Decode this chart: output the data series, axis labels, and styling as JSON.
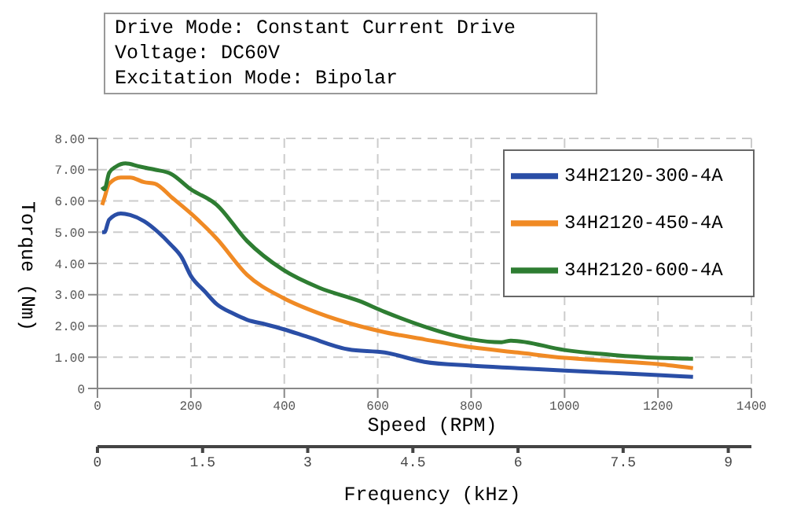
{
  "chart_data": {
    "type": "line",
    "xlabel": "Speed (RPM)",
    "ylabel": "Torque (Nm)",
    "x2label": "Frequency (kHz)",
    "annotations": [
      "Drive Mode: Constant Current Drive",
      "Voltage: DC60V",
      "Excitation Mode: Bipolar"
    ],
    "xlim": [
      0,
      1400
    ],
    "xticks": [
      0,
      200,
      400,
      600,
      800,
      1000,
      1200,
      1400
    ],
    "ylim": [
      0,
      8
    ],
    "yticks": [
      0,
      {
        "value": 1,
        "label": "1.00"
      },
      {
        "value": 2,
        "label": "2.00"
      },
      {
        "value": 3,
        "label": "3.00"
      },
      {
        "value": 4,
        "label": "4.00"
      },
      {
        "value": 5,
        "label": "5.00"
      },
      {
        "value": 6,
        "label": "6.00"
      },
      {
        "value": 7,
        "label": "7.00"
      },
      {
        "value": 8,
        "label": "8.00"
      }
    ],
    "x2lim": [
      0,
      9.33
    ],
    "x2ticks": [
      0,
      1.5,
      3,
      4.5,
      6,
      7.5,
      9
    ],
    "grid": true,
    "legend": "top right",
    "marker": "none",
    "line_style": "solid",
    "series": [
      {
        "name": "34H2120-300-4A",
        "color": "#2a4ea6",
        "x": [
          10,
          15,
          25,
          50,
          70,
          100,
          130,
          157,
          180,
          200,
          230,
          255,
          290,
          320,
          360,
          397,
          450,
          537,
          615,
          700,
          800,
          900,
          1000,
          1100,
          1200,
          1275
        ],
        "values": [
          5.0,
          5.0,
          5.4,
          5.6,
          5.55,
          5.35,
          5.0,
          4.6,
          4.2,
          3.6,
          3.1,
          2.7,
          2.4,
          2.2,
          2.05,
          1.9,
          1.65,
          1.25,
          1.15,
          0.85,
          0.73,
          0.65,
          0.57,
          0.5,
          0.43,
          0.37
        ]
      },
      {
        "name": "34H2120-450-4A",
        "color": "#f08a24",
        "x": [
          10,
          15,
          25,
          50,
          70,
          100,
          123,
          160,
          200,
          255,
          320,
          397,
          475,
          560,
          615,
          700,
          800,
          900,
          1000,
          1100,
          1200,
          1275
        ],
        "values": [
          5.87,
          6.1,
          6.55,
          6.75,
          6.75,
          6.6,
          6.55,
          6.1,
          5.6,
          4.8,
          3.64,
          2.9,
          2.4,
          2.0,
          1.8,
          1.57,
          1.32,
          1.15,
          0.98,
          0.88,
          0.78,
          0.65
        ]
      },
      {
        "name": "34H2120-600-4A",
        "color": "#2e7d32",
        "x": [
          10,
          15,
          25,
          40,
          60,
          90,
          123,
          157,
          200,
          255,
          320,
          397,
          475,
          560,
          615,
          700,
          800,
          865,
          885,
          1000,
          1105,
          1200,
          1275
        ],
        "values": [
          6.45,
          6.37,
          6.9,
          7.1,
          7.2,
          7.1,
          7.0,
          6.87,
          6.37,
          5.88,
          4.72,
          3.8,
          3.22,
          2.8,
          2.45,
          1.98,
          1.57,
          1.48,
          1.53,
          1.23,
          1.07,
          0.98,
          0.95
        ]
      }
    ]
  }
}
